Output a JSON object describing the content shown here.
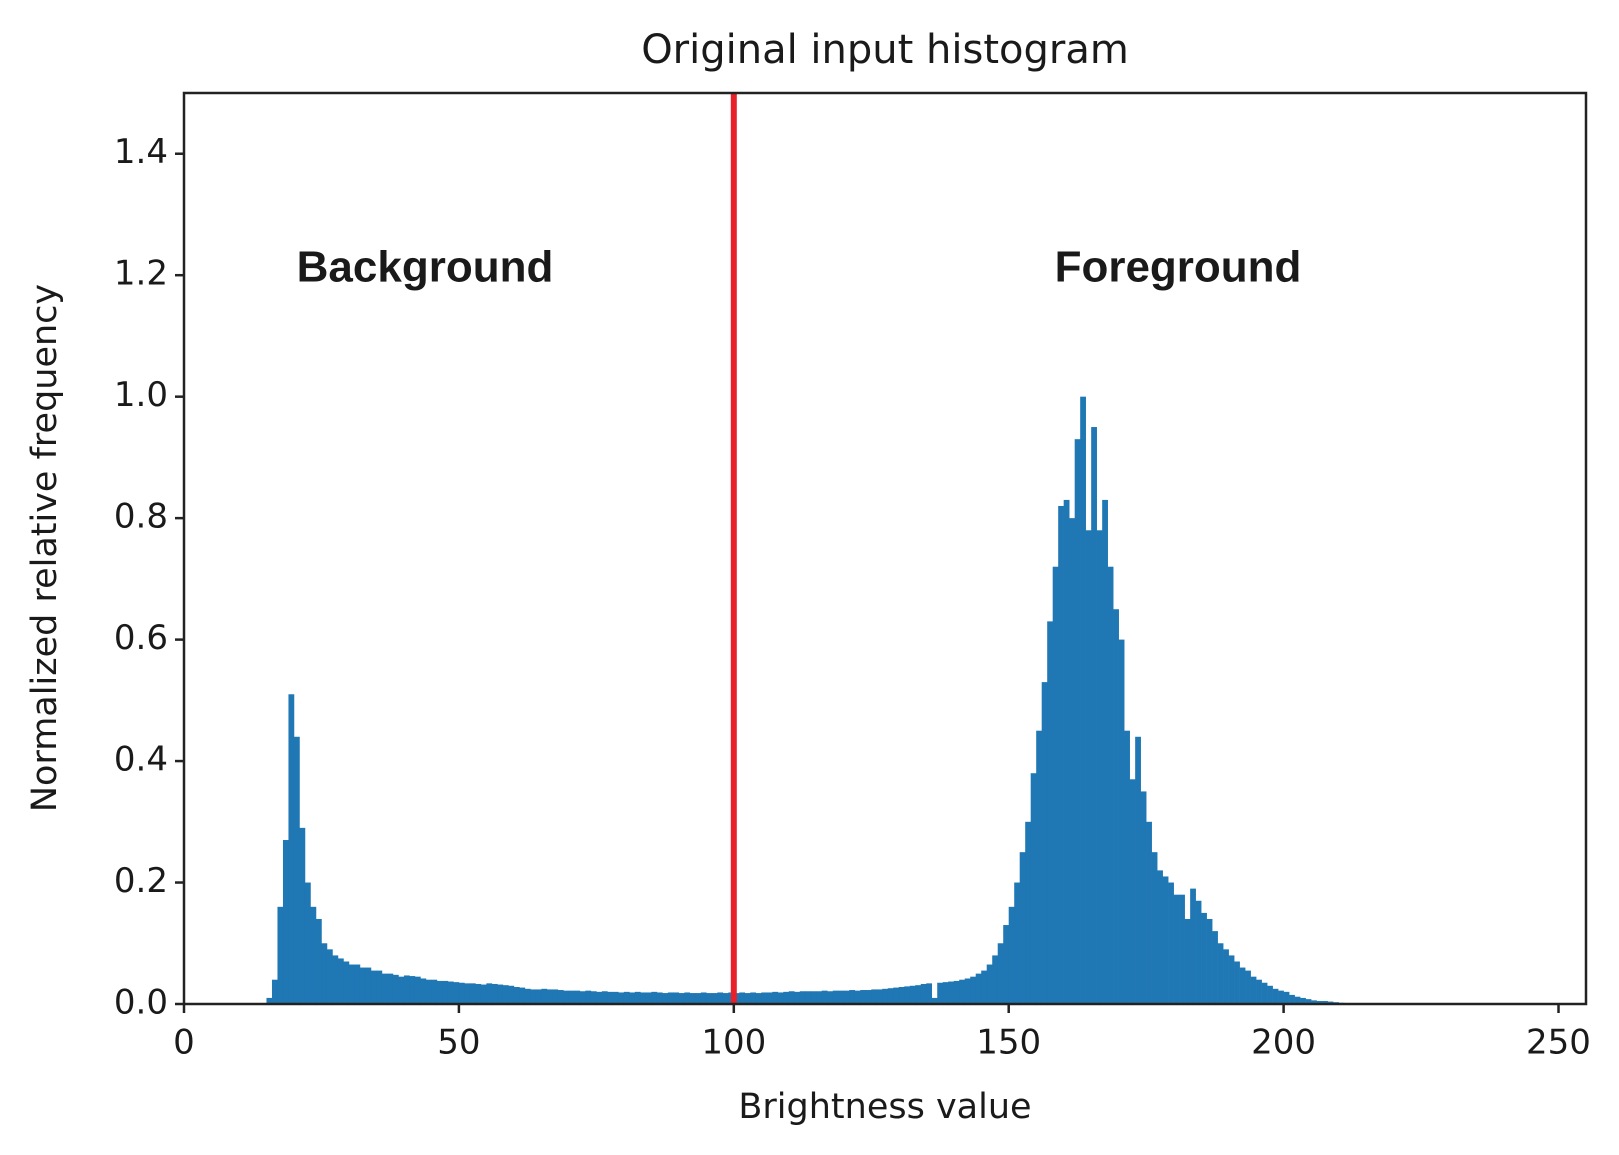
{
  "chart_data": {
    "type": "histogram",
    "title": "Original input histogram",
    "xlabel": "Brightness value",
    "ylabel": "Normalized relative frequency",
    "annotations": [
      "Background",
      "Foreground"
    ],
    "color": "#1f77b4",
    "threshold": 100,
    "threshold_color": "#e8202a",
    "xlim": [
      0,
      255
    ],
    "ylim": [
      0,
      1.5
    ],
    "xticks": [
      0,
      50,
      100,
      150,
      200,
      250
    ],
    "yticks": [
      {
        "value": 0,
        "label": "0.0"
      },
      0.2,
      0.4,
      0.6,
      0.8,
      {
        "value": 1,
        "label": "1.0"
      },
      1.2,
      1.4
    ],
    "grid": false,
    "bins": [
      15,
      16,
      17,
      18,
      19,
      20,
      21,
      22,
      23,
      24,
      25,
      26,
      27,
      28,
      29,
      30,
      31,
      32,
      33,
      34,
      35,
      36,
      37,
      38,
      39,
      40,
      41,
      42,
      43,
      44,
      45,
      46,
      47,
      48,
      49,
      50,
      51,
      52,
      53,
      54,
      55,
      56,
      57,
      58,
      59,
      60,
      61,
      62,
      63,
      64,
      65,
      66,
      67,
      68,
      69,
      70,
      71,
      72,
      73,
      74,
      75,
      76,
      77,
      78,
      79,
      80,
      81,
      82,
      83,
      84,
      85,
      86,
      87,
      88,
      89,
      90,
      91,
      92,
      93,
      94,
      95,
      96,
      97,
      98,
      99,
      100,
      101,
      102,
      103,
      104,
      105,
      106,
      107,
      108,
      109,
      110,
      111,
      112,
      113,
      114,
      115,
      116,
      117,
      118,
      119,
      120,
      121,
      122,
      123,
      124,
      125,
      126,
      127,
      128,
      129,
      130,
      131,
      132,
      133,
      134,
      135,
      136,
      137,
      138,
      139,
      140,
      141,
      142,
      143,
      144,
      145,
      146,
      147,
      148,
      149,
      150,
      151,
      152,
      153,
      154,
      155,
      156,
      157,
      158,
      159,
      160,
      161,
      162,
      163,
      164,
      165,
      166,
      167,
      168,
      169,
      170,
      171,
      172,
      173,
      174,
      175,
      176,
      177,
      178,
      179,
      180,
      181,
      182,
      183,
      184,
      185,
      186,
      187,
      188,
      189,
      190,
      191,
      192,
      193,
      194,
      195,
      196,
      197,
      198,
      199,
      200,
      201,
      202,
      203,
      204,
      205,
      206,
      207,
      208,
      209,
      210,
      211,
      212
    ],
    "values": [
      0.01,
      0.04,
      0.16,
      0.27,
      0.51,
      0.44,
      0.29,
      0.2,
      0.16,
      0.14,
      0.1,
      0.09,
      0.08,
      0.075,
      0.07,
      0.065,
      0.065,
      0.06,
      0.06,
      0.055,
      0.055,
      0.05,
      0.05,
      0.048,
      0.045,
      0.047,
      0.046,
      0.045,
      0.042,
      0.04,
      0.04,
      0.038,
      0.038,
      0.037,
      0.036,
      0.035,
      0.034,
      0.034,
      0.033,
      0.032,
      0.034,
      0.033,
      0.032,
      0.031,
      0.03,
      0.028,
      0.027,
      0.025,
      0.024,
      0.024,
      0.025,
      0.024,
      0.024,
      0.023,
      0.022,
      0.022,
      0.022,
      0.021,
      0.022,
      0.021,
      0.02,
      0.021,
      0.02,
      0.02,
      0.019,
      0.02,
      0.019,
      0.02,
      0.019,
      0.019,
      0.02,
      0.019,
      0.018,
      0.019,
      0.019,
      0.018,
      0.019,
      0.018,
      0.018,
      0.019,
      0.018,
      0.018,
      0.019,
      0.018,
      0.019,
      0.018,
      0.019,
      0.018,
      0.019,
      0.018,
      0.019,
      0.019,
      0.02,
      0.019,
      0.02,
      0.021,
      0.02,
      0.021,
      0.021,
      0.021,
      0.021,
      0.022,
      0.021,
      0.022,
      0.022,
      0.022,
      0.023,
      0.022,
      0.023,
      0.023,
      0.024,
      0.024,
      0.025,
      0.026,
      0.027,
      0.028,
      0.029,
      0.03,
      0.031,
      0.033,
      0.034,
      0.01,
      0.035,
      0.036,
      0.037,
      0.038,
      0.04,
      0.042,
      0.045,
      0.05,
      0.055,
      0.065,
      0.08,
      0.1,
      0.13,
      0.16,
      0.2,
      0.25,
      0.3,
      0.38,
      0.45,
      0.53,
      0.63,
      0.72,
      0.82,
      0.83,
      0.8,
      0.93,
      1.0,
      0.78,
      0.95,
      0.78,
      0.83,
      0.72,
      0.65,
      0.6,
      0.45,
      0.37,
      0.44,
      0.35,
      0.3,
      0.25,
      0.22,
      0.21,
      0.2,
      0.18,
      0.18,
      0.14,
      0.19,
      0.17,
      0.15,
      0.14,
      0.12,
      0.1,
      0.09,
      0.08,
      0.07,
      0.06,
      0.055,
      0.045,
      0.04,
      0.035,
      0.03,
      0.025,
      0.022,
      0.02,
      0.015,
      0.012,
      0.01,
      0.008,
      0.006,
      0.005,
      0.005,
      0.004,
      0.003,
      0.002,
      0.001
    ]
  }
}
